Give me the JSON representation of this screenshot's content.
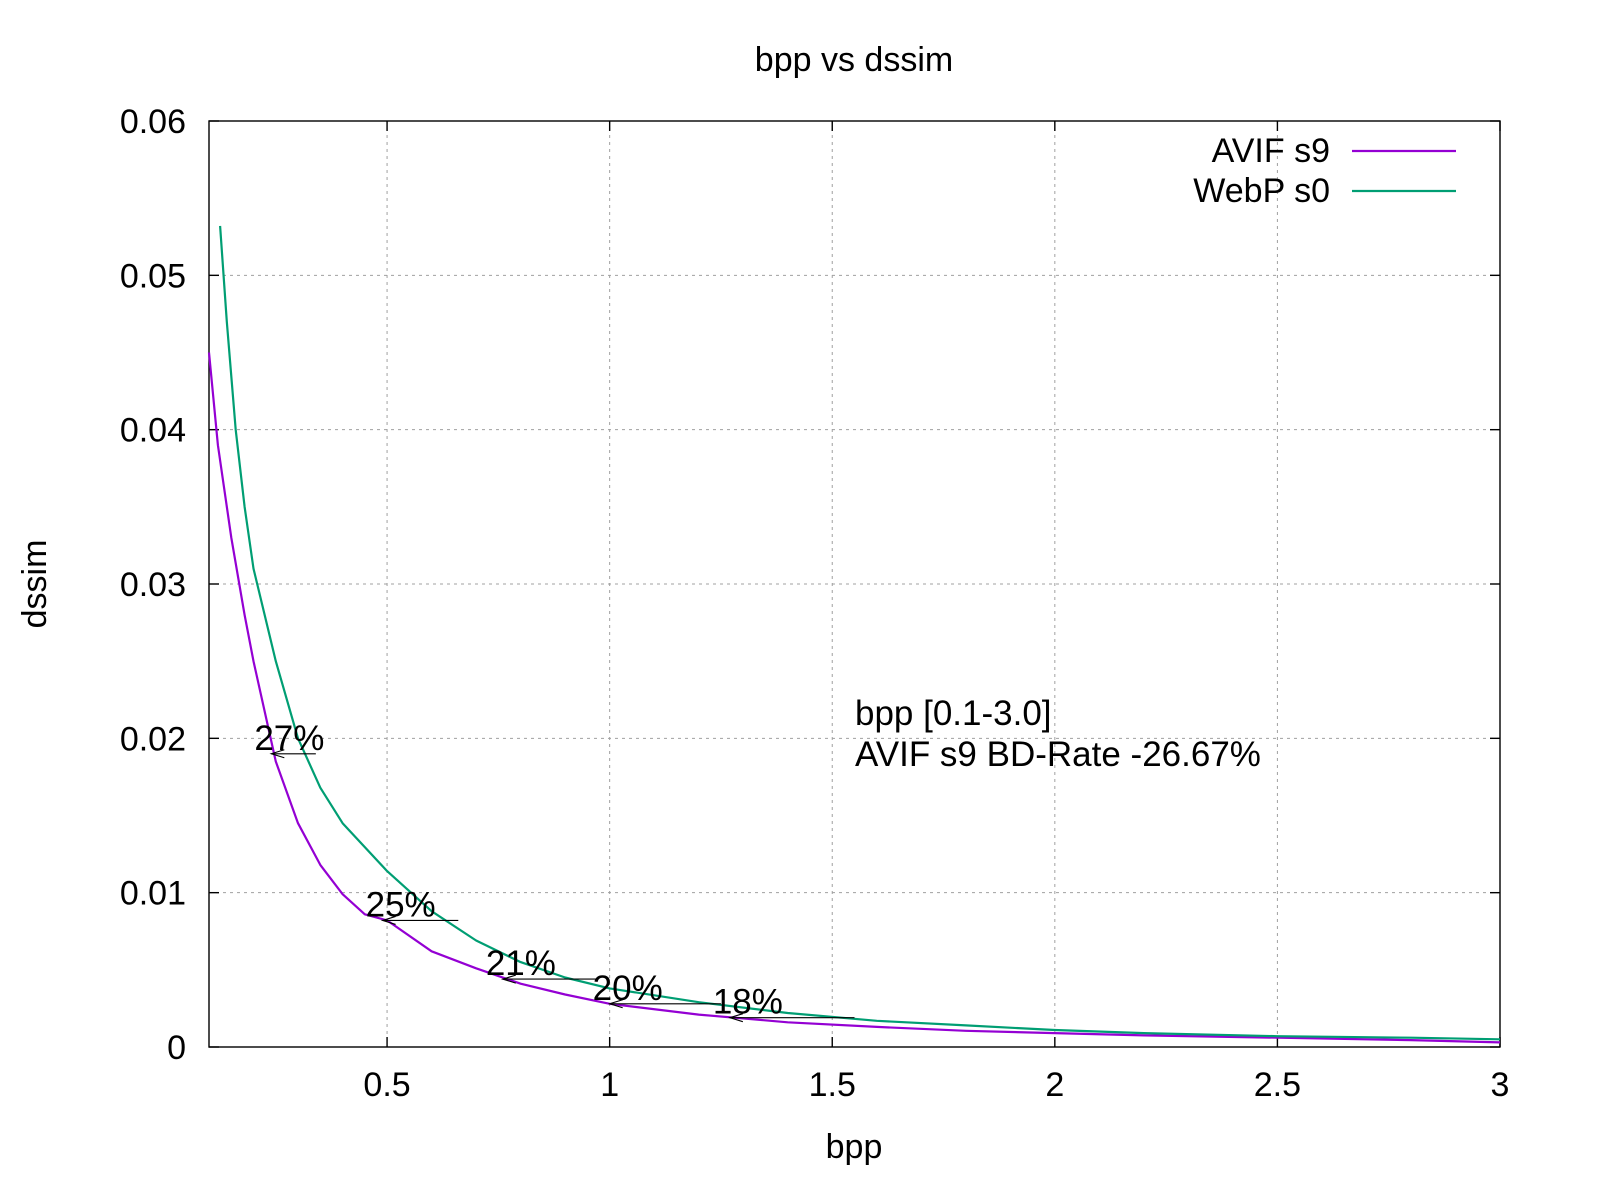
{
  "chart_data": {
    "type": "line",
    "title": "bpp vs dssim",
    "xlabel": "bpp",
    "ylabel": "dssim",
    "xlim": [
      0.1,
      3.0
    ],
    "ylim": [
      0,
      0.06
    ],
    "xticks": [
      0.5,
      1,
      1.5,
      2,
      2.5,
      3
    ],
    "xtick_labels": [
      "0.5",
      "1",
      "1.5",
      "2",
      "2.5",
      "3"
    ],
    "yticks": [
      0,
      0.01,
      0.02,
      0.03,
      0.04,
      0.05,
      0.06
    ],
    "ytick_labels": [
      "0",
      "0.01",
      "0.02",
      "0.03",
      "0.04",
      "0.05",
      "0.06"
    ],
    "grid": true,
    "legend_position": "top-right",
    "series": [
      {
        "name": "AVIF s9",
        "color": "#9400d3",
        "x": [
          0.1,
          0.12,
          0.15,
          0.18,
          0.2,
          0.25,
          0.3,
          0.35,
          0.4,
          0.45,
          0.5,
          0.6,
          0.7,
          0.8,
          0.9,
          1.0,
          1.2,
          1.4,
          1.6,
          1.8,
          2.0,
          2.2,
          2.5,
          2.8,
          3.0
        ],
        "y": [
          0.045,
          0.039,
          0.033,
          0.028,
          0.025,
          0.0185,
          0.0145,
          0.0118,
          0.0099,
          0.0086,
          0.0082,
          0.0062,
          0.0051,
          0.0041,
          0.0034,
          0.0028,
          0.0021,
          0.0016,
          0.0013,
          0.00105,
          0.0009,
          0.00075,
          0.0006,
          0.00045,
          0.0003
        ]
      },
      {
        "name": "WebP s0",
        "color": "#009e73",
        "x": [
          0.125,
          0.14,
          0.16,
          0.18,
          0.2,
          0.25,
          0.3,
          0.35,
          0.4,
          0.5,
          0.6,
          0.7,
          0.8,
          0.9,
          1.0,
          1.2,
          1.4,
          1.6,
          1.8,
          2.0,
          2.2,
          2.5,
          2.8,
          3.0
        ],
        "y": [
          0.0532,
          0.047,
          0.04,
          0.035,
          0.031,
          0.025,
          0.02,
          0.0168,
          0.0145,
          0.0114,
          0.0088,
          0.0069,
          0.0055,
          0.0045,
          0.0038,
          0.0029,
          0.0022,
          0.0017,
          0.0014,
          0.0011,
          0.0009,
          0.0007,
          0.0006,
          0.0005
        ]
      }
    ],
    "annotations": [
      {
        "label": "27%",
        "from_x": 0.34,
        "to_x": 0.24,
        "y": 0.019
      },
      {
        "label": "25%",
        "from_x": 0.66,
        "to_x": 0.49,
        "y": 0.0082
      },
      {
        "label": "21%",
        "from_x": 0.97,
        "to_x": 0.76,
        "y": 0.0044
      },
      {
        "label": "20%",
        "from_x": 1.25,
        "to_x": 1.0,
        "y": 0.0028
      },
      {
        "label": "18%",
        "from_x": 1.55,
        "to_x": 1.27,
        "y": 0.0019
      }
    ],
    "text_box": {
      "color": "#00e800",
      "lines": [
        "bpp [0.1-3.0]",
        "AVIF s9 BD-Rate -26.67%"
      ]
    }
  }
}
